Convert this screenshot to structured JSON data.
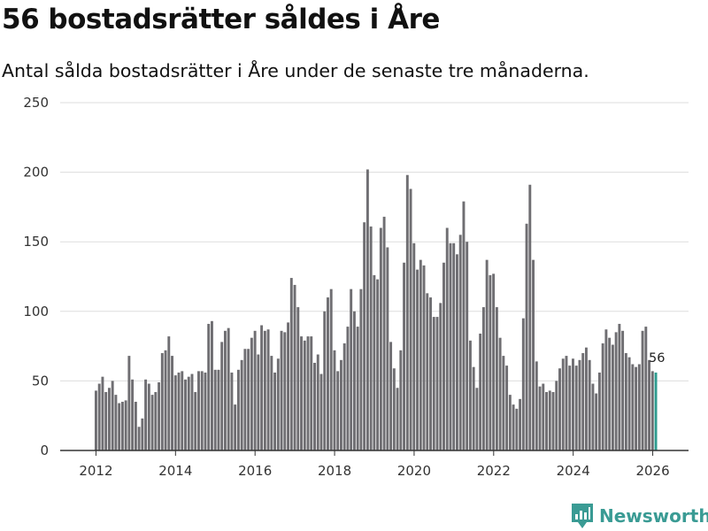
{
  "title": "56 bostadsrätter såldes i Åre",
  "subtitle": "Antal sålda bostadsrätter i Åre under de senaste tre månaderna.",
  "brand": "Newsworthy",
  "colors": {
    "bar": "#6f6e72",
    "highlight": "#2e9b8f",
    "grid": "#dddddd",
    "brand": "#3a9b94"
  },
  "chart_data": {
    "type": "bar",
    "title": "56 bostadsrätter såldes i Åre",
    "xlabel": "",
    "ylabel": "",
    "ylim": [
      0,
      250
    ],
    "xlim": [
      2011.1,
      2026.9
    ],
    "yticks": [
      0,
      50,
      100,
      150,
      200,
      250
    ],
    "xticks": [
      2012,
      2014,
      2016,
      2018,
      2020,
      2022,
      2024,
      2026
    ],
    "grid": true,
    "x_start": 2012.0,
    "x_step": 0.0833,
    "highlight_last": true,
    "last_label": "56",
    "values": [
      43,
      48,
      53,
      42,
      45,
      50,
      40,
      34,
      35,
      36,
      68,
      51,
      35,
      17,
      23,
      51,
      48,
      40,
      42,
      49,
      70,
      72,
      82,
      68,
      54,
      56,
      57,
      51,
      53,
      55,
      42,
      57,
      57,
      56,
      91,
      93,
      58,
      58,
      78,
      86,
      88,
      56,
      33,
      58,
      65,
      73,
      73,
      81,
      86,
      69,
      90,
      86,
      87,
      68,
      56,
      66,
      86,
      85,
      92,
      124,
      119,
      103,
      82,
      79,
      82,
      82,
      63,
      69,
      55,
      100,
      110,
      116,
      72,
      57,
      65,
      77,
      89,
      116,
      100,
      89,
      116,
      164,
      202,
      161,
      126,
      123,
      160,
      168,
      146,
      78,
      59,
      45,
      72,
      135,
      198,
      188,
      149,
      130,
      137,
      133,
      113,
      110,
      96,
      96,
      106,
      135,
      160,
      149,
      149,
      141,
      155,
      179,
      150,
      79,
      60,
      45,
      84,
      103,
      137,
      126,
      127,
      103,
      81,
      68,
      61,
      40,
      33,
      30,
      37,
      95,
      163,
      191,
      137,
      64,
      46,
      48,
      42,
      43,
      42,
      50,
      59,
      66,
      68,
      61,
      66,
      61,
      65,
      70,
      74,
      65,
      48,
      41,
      56,
      77,
      87,
      81,
      76,
      85,
      91,
      86,
      70,
      67,
      62,
      60,
      62,
      86,
      89,
      65,
      57,
      56
    ]
  }
}
